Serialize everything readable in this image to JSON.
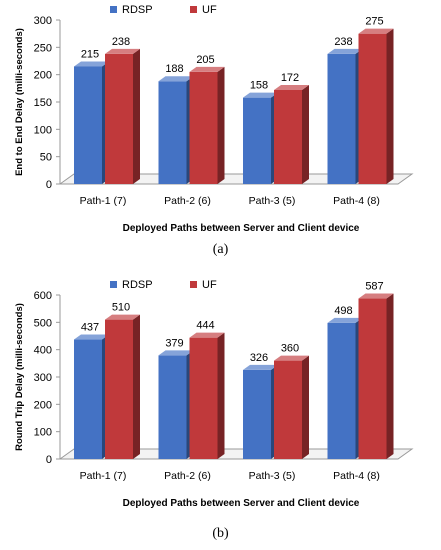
{
  "colors": {
    "RDSP": "#4472c4",
    "UF": "#c0393b"
  },
  "chart_data": [
    {
      "type": "bar",
      "three_d": true,
      "categories": [
        "Path-1 (7)",
        "Path-2 (6)",
        "Path-3 (5)",
        "Path-4 (8)"
      ],
      "series": [
        {
          "name": "RDSP",
          "values": [
            215,
            188,
            158,
            238
          ]
        },
        {
          "name": "UF",
          "values": [
            238,
            205,
            172,
            275
          ]
        }
      ],
      "xlabel": "Deployed Paths between Server and Client device",
      "ylabel": "End to End Delay (milli-seconds)",
      "ylim": [
        0,
        300
      ],
      "yticks": [
        0,
        50,
        100,
        150,
        200,
        250,
        300
      ],
      "legend": "top",
      "grid": false,
      "caption": "(a)"
    },
    {
      "type": "bar",
      "three_d": true,
      "categories": [
        "Path-1 (7)",
        "Path-2 (6)",
        "Path-3 (5)",
        "Path-4 (8)"
      ],
      "series": [
        {
          "name": "RDSP",
          "values": [
            437,
            379,
            326,
            498
          ]
        },
        {
          "name": "UF",
          "values": [
            510,
            444,
            360,
            587
          ]
        }
      ],
      "xlabel": "Deployed Paths between Server and Client device",
      "ylabel": "Round Trip Delay (milli-seconds)",
      "ylim": [
        0,
        600
      ],
      "yticks": [
        0,
        100,
        200,
        300,
        400,
        500,
        600
      ],
      "legend": "top",
      "grid": false,
      "caption": "(b)"
    }
  ]
}
